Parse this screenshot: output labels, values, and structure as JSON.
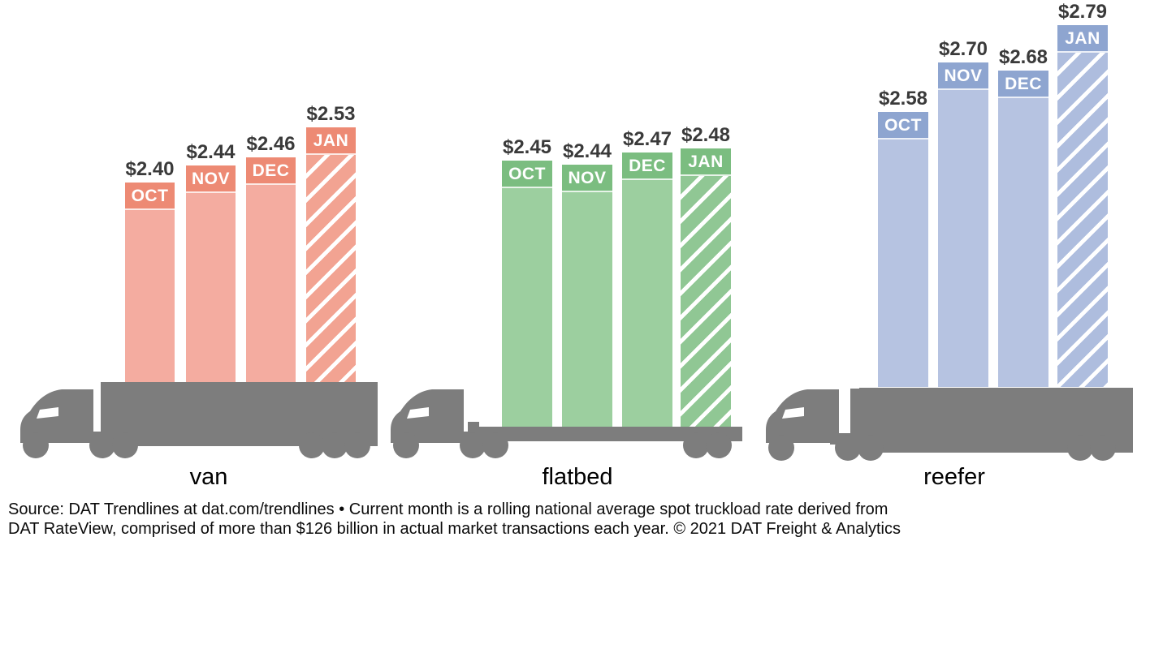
{
  "chart_data": {
    "type": "bar",
    "categories": [
      "OCT",
      "NOV",
      "DEC",
      "JAN"
    ],
    "series": [
      {
        "name": "van",
        "values": [
          2.4,
          2.44,
          2.46,
          2.53
        ],
        "value_labels": [
          "$2.40",
          "$2.44",
          "$2.46",
          "$2.53"
        ],
        "colors": {
          "header": "#ed8a74",
          "body": "#f4aca0",
          "hatch": "#f2a392"
        }
      },
      {
        "name": "flatbed",
        "values": [
          2.45,
          2.44,
          2.47,
          2.48
        ],
        "value_labels": [
          "$2.45",
          "$2.44",
          "$2.47",
          "$2.48"
        ],
        "colors": {
          "header": "#7bbd80",
          "body": "#9ccf9f",
          "hatch": "#90c794"
        }
      },
      {
        "name": "reefer",
        "values": [
          2.58,
          2.7,
          2.68,
          2.79
        ],
        "value_labels": [
          "$2.58",
          "$2.70",
          "$2.68",
          "$2.79"
        ],
        "colors": {
          "header": "#8ea5d0",
          "body": "#b6c3e1",
          "hatch": "#aebdde"
        }
      }
    ],
    "hatched_category": "JAN",
    "hatched_index": 3,
    "truck_color": "#7d7d7d",
    "value_label_color": "#3a3a3a",
    "layout": {
      "grid": false,
      "legend": "none",
      "background": "#ffffff",
      "value_range_shown": [
        2.4,
        2.79
      ],
      "bars_rest_on": "truck silhouettes"
    }
  },
  "footer": {
    "line1": "Source: DAT Trendlines at dat.com/trendlines • Current month is a rolling national average spot truckload rate derived from",
    "line2": "DAT RateView, comprised of more than $126 billion in actual market transactions each year. © 2021 DAT Freight & Analytics"
  }
}
